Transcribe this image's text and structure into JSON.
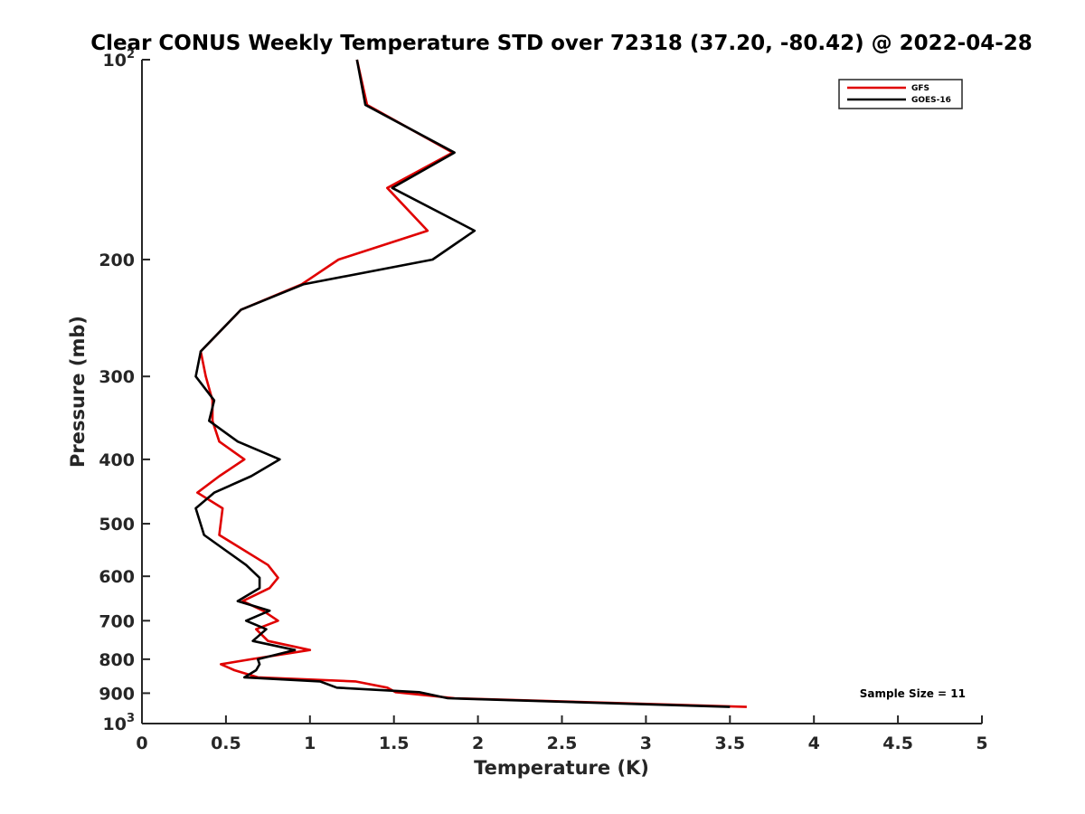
{
  "chart_data": {
    "type": "line",
    "title": "Clear CONUS Weekly Temperature STD over 72318 (37.20, -80.42) @ 2022-04-28",
    "xlabel": "Temperature (K)",
    "ylabel": "Pressure (mb)",
    "xlim": [
      0,
      5
    ],
    "ylim": [
      100,
      1000
    ],
    "y_scale": "log",
    "y_reversed": true,
    "grid": false,
    "legend_position": "top-right",
    "x_ticks": [
      {
        "value": 0,
        "label": "0"
      },
      {
        "value": 0.5,
        "label": "0.5"
      },
      {
        "value": 1,
        "label": "1"
      },
      {
        "value": 1.5,
        "label": "1.5"
      },
      {
        "value": 2,
        "label": "2"
      },
      {
        "value": 2.5,
        "label": "2.5"
      },
      {
        "value": 3,
        "label": "3"
      },
      {
        "value": 3.5,
        "label": "3.5"
      },
      {
        "value": 4,
        "label": "4"
      },
      {
        "value": 4.5,
        "label": "4.5"
      },
      {
        "value": 5,
        "label": "5"
      }
    ],
    "y_ticks": [
      {
        "value": 100,
        "base": "10",
        "exp": "2"
      },
      {
        "value": 200,
        "base": "200",
        "exp": ""
      },
      {
        "value": 300,
        "base": "300",
        "exp": ""
      },
      {
        "value": 400,
        "base": "400",
        "exp": ""
      },
      {
        "value": 500,
        "base": "500",
        "exp": ""
      },
      {
        "value": 600,
        "base": "600",
        "exp": ""
      },
      {
        "value": 700,
        "base": "700",
        "exp": ""
      },
      {
        "value": 800,
        "base": "800",
        "exp": ""
      },
      {
        "value": 900,
        "base": "900",
        "exp": ""
      },
      {
        "value": 1000,
        "base": "10",
        "exp": "3"
      }
    ],
    "annotation": "Sample Size = 11",
    "series": [
      {
        "name": "GFS",
        "color": "#e00000",
        "points": [
          [
            1.28,
            100
          ],
          [
            1.34,
            117
          ],
          [
            1.85,
            138
          ],
          [
            1.46,
            156
          ],
          [
            1.7,
            181
          ],
          [
            1.17,
            200
          ],
          [
            0.95,
            218
          ],
          [
            0.59,
            238
          ],
          [
            0.35,
            275
          ],
          [
            0.38,
            300
          ],
          [
            0.42,
            326
          ],
          [
            0.42,
            350
          ],
          [
            0.46,
            376
          ],
          [
            0.61,
            400
          ],
          [
            0.46,
            424
          ],
          [
            0.33,
            449
          ],
          [
            0.48,
            474
          ],
          [
            0.46,
            520
          ],
          [
            0.75,
            577
          ],
          [
            0.81,
            603
          ],
          [
            0.76,
            625
          ],
          [
            0.6,
            654
          ],
          [
            0.72,
            676
          ],
          [
            0.81,
            700
          ],
          [
            0.68,
            721
          ],
          [
            0.75,
            751
          ],
          [
            1.0,
            775
          ],
          [
            0.65,
            800
          ],
          [
            0.47,
            814
          ],
          [
            0.55,
            831
          ],
          [
            0.69,
            852
          ],
          [
            1.27,
            864
          ],
          [
            1.46,
            883
          ],
          [
            1.51,
            897
          ],
          [
            1.86,
            916
          ],
          [
            3.6,
            944
          ]
        ]
      },
      {
        "name": "GOES-16",
        "color": "#000000",
        "points": [
          [
            1.28,
            100
          ],
          [
            1.33,
            117
          ],
          [
            1.86,
            138
          ],
          [
            1.49,
            156
          ],
          [
            1.98,
            181
          ],
          [
            1.73,
            200
          ],
          [
            0.96,
            218
          ],
          [
            0.59,
            238
          ],
          [
            0.35,
            275
          ],
          [
            0.32,
            300
          ],
          [
            0.43,
            326
          ],
          [
            0.4,
            350
          ],
          [
            0.57,
            376
          ],
          [
            0.82,
            400
          ],
          [
            0.65,
            424
          ],
          [
            0.43,
            449
          ],
          [
            0.32,
            474
          ],
          [
            0.37,
            520
          ],
          [
            0.62,
            577
          ],
          [
            0.7,
            603
          ],
          [
            0.7,
            625
          ],
          [
            0.57,
            654
          ],
          [
            0.76,
            676
          ],
          [
            0.62,
            700
          ],
          [
            0.74,
            721
          ],
          [
            0.66,
            751
          ],
          [
            0.91,
            775
          ],
          [
            0.69,
            800
          ],
          [
            0.7,
            814
          ],
          [
            0.68,
            831
          ],
          [
            0.61,
            852
          ],
          [
            1.06,
            864
          ],
          [
            1.16,
            883
          ],
          [
            1.65,
            897
          ],
          [
            1.82,
            916
          ],
          [
            3.5,
            944
          ]
        ]
      }
    ]
  }
}
